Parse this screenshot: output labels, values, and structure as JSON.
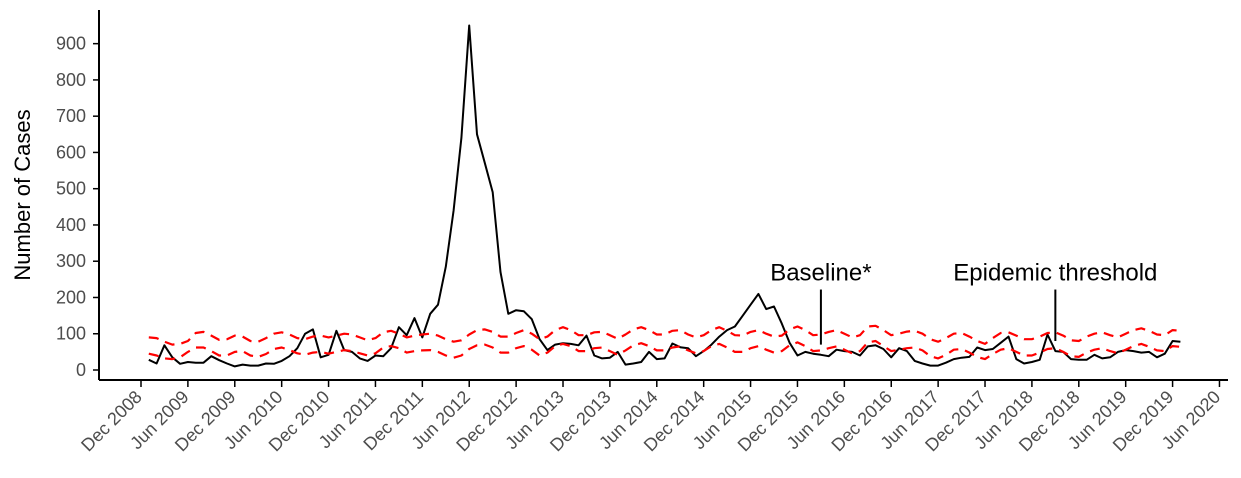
{
  "chart_data": {
    "type": "line",
    "title": "",
    "xlabel": "",
    "ylabel": "Number of Cases",
    "ylim": [
      -30,
      1000
    ],
    "yticks": [
      0,
      100,
      200,
      300,
      400,
      500,
      600,
      700,
      800,
      900
    ],
    "xticks": [
      "Dec 2008",
      "Jun 2009",
      "Dec 2009",
      "Jun 2010",
      "Dec 2010",
      "Jun 2011",
      "Dec 2011",
      "Jun 2012",
      "Dec 2012",
      "Jun 2013",
      "Dec 2013",
      "Jun 2014",
      "Dec 2014",
      "Jun 2015",
      "Dec 2015",
      "Jun 2016",
      "Dec 2016",
      "Jun 2017",
      "Dec 2017",
      "Jun 2018",
      "Dec 2018",
      "Jun 2019",
      "Dec 2019",
      "Jun 2020"
    ],
    "x_start": "Jan 2009",
    "x_step": "1 month",
    "grid": false,
    "legend": "none",
    "colors": {
      "cases": "#000000",
      "band": "#ff0000",
      "axis": "#000000",
      "tick_text": "#4d4d4d"
    },
    "series": [
      {
        "style": "solid",
        "values": [
          28,
          18,
          68,
          35,
          17,
          22,
          20,
          20,
          38,
          27,
          18,
          10,
          15,
          12,
          12,
          18,
          17,
          25,
          38,
          60,
          100,
          112,
          35,
          42,
          108,
          55,
          50,
          32,
          25,
          40,
          38,
          60,
          118,
          96,
          143,
          90,
          155,
          180,
          285,
          440,
          640,
          950,
          650,
          570,
          490,
          270,
          155,
          165,
          162,
          140,
          85,
          55,
          70,
          74,
          72,
          68,
          95,
          40,
          32,
          34,
          50,
          15,
          18,
          22,
          50,
          30,
          32,
          73,
          63,
          60,
          38,
          52,
          70,
          92,
          110,
          120,
          150,
          180,
          210,
          168,
          175,
          128,
          75,
          40,
          50,
          45,
          42,
          38,
          56,
          52,
          50,
          40,
          65,
          68,
          58,
          35,
          60,
          52,
          25,
          18,
          12,
          12,
          20,
          30,
          34,
          36,
          62,
          55,
          58,
          75,
          92,
          30,
          18,
          22,
          28,
          98,
          52,
          50,
          30,
          28,
          28,
          42,
          32,
          35,
          50,
          55,
          52,
          48,
          50,
          35,
          45,
          80,
          78
        ]
      },
      {
        "style": "dashed",
        "values": [
          90,
          88,
          78,
          70,
          72,
          80,
          102,
          105,
          95,
          83,
          85,
          95,
          92,
          80,
          78,
          88,
          100,
          104,
          98,
          88,
          85,
          92,
          95,
          90,
          95,
          100,
          98,
          90,
          82,
          88,
          104,
          108,
          100,
          90,
          95,
          98,
          100,
          95,
          85,
          78,
          82,
          98,
          110,
          112,
          105,
          92,
          92,
          102,
          110,
          100,
          85,
          92,
          110,
          118,
          110,
          96,
          96,
          104,
          105,
          96,
          86,
          98,
          112,
          118,
          110,
          98,
          98,
          108,
          110,
          98,
          90,
          96,
          110,
          118,
          108,
          96,
          95,
          105,
          110,
          100,
          92,
          95,
          112,
          120,
          110,
          96,
          98,
          105,
          110,
          100,
          90,
          96,
          120,
          122,
          110,
          96,
          100,
          106,
          108,
          100,
          85,
          78,
          88,
          100,
          102,
          92,
          80,
          72,
          88,
          102,
          104,
          95,
          85,
          85,
          92,
          102,
          104,
          95,
          82,
          80,
          92,
          100,
          104,
          96,
          90,
          100,
          110,
          115,
          108,
          98,
          96,
          110,
          108
        ]
      },
      {
        "style": "dashed",
        "values": [
          45,
          40,
          32,
          30,
          35,
          50,
          62,
          62,
          52,
          40,
          40,
          50,
          52,
          40,
          36,
          44,
          58,
          62,
          55,
          46,
          42,
          48,
          50,
          45,
          50,
          55,
          52,
          46,
          40,
          46,
          62,
          66,
          60,
          48,
          52,
          54,
          55,
          50,
          40,
          34,
          40,
          58,
          68,
          70,
          62,
          48,
          48,
          60,
          66,
          56,
          40,
          48,
          66,
          72,
          66,
          52,
          52,
          60,
          62,
          52,
          42,
          54,
          68,
          74,
          66,
          54,
          54,
          62,
          65,
          54,
          46,
          52,
          66,
          72,
          62,
          50,
          50,
          60,
          66,
          56,
          48,
          52,
          68,
          76,
          66,
          52,
          54,
          60,
          65,
          56,
          46,
          52,
          76,
          80,
          66,
          52,
          56,
          60,
          62,
          54,
          38,
          32,
          42,
          56,
          58,
          48,
          36,
          30,
          44,
          56,
          60,
          50,
          40,
          40,
          48,
          58,
          60,
          50,
          38,
          36,
          48,
          56,
          60,
          52,
          46,
          56,
          66,
          72,
          64,
          54,
          52,
          66,
          64
        ]
      }
    ],
    "annotations": [
      {
        "text": "Baseline*",
        "x": "Mar 2016",
        "y_top": 255,
        "y_point": 70
      },
      {
        "text": "Epidemic threshold",
        "x": "Sep 2018",
        "y_top": 255,
        "y_point": 80
      }
    ]
  }
}
